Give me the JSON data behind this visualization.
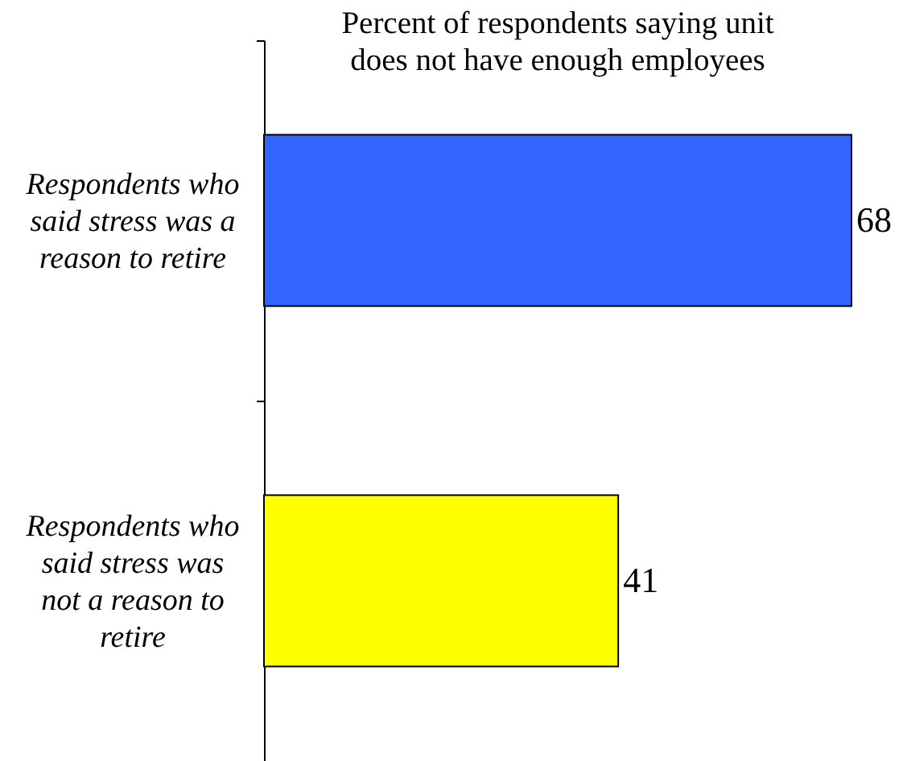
{
  "chart_data": {
    "type": "bar",
    "orientation": "horizontal",
    "title": "Percent of respondents saying unit does not have enough employees",
    "categories": [
      "Respondents who said stress was a reason to retire",
      "Respondents who said stress was not a reason to retire"
    ],
    "values": [
      68,
      41
    ],
    "colors": [
      "#3366ff",
      "#ffff00"
    ],
    "data_labels": true,
    "tick_labels": "y"
  }
}
